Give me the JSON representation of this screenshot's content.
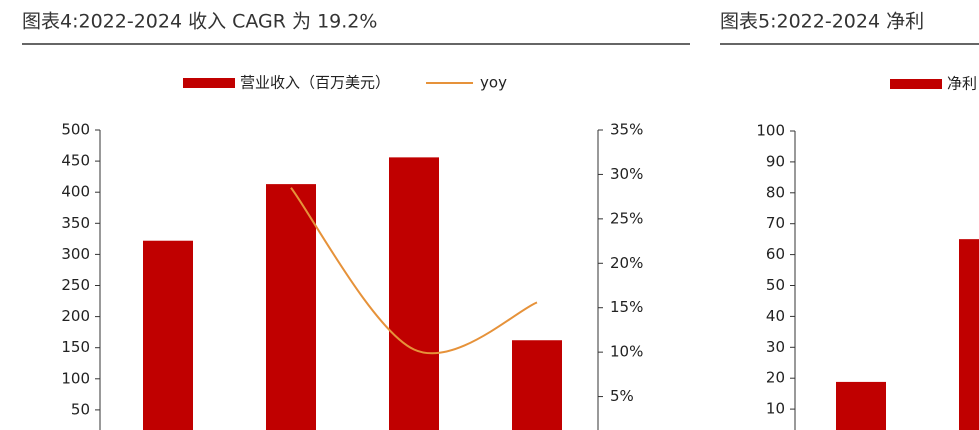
{
  "chart_data": [
    {
      "type": "bar-line",
      "title": "图表4:2022-2024 收入 CAGR 为 19.2%",
      "categories": [
        null,
        null,
        null,
        null
      ],
      "series": [
        {
          "name": "营业收入（百万美元）",
          "color": "#c00000",
          "type": "bar",
          "values": [
            322,
            413,
            456,
            162
          ]
        },
        {
          "name": "yoy",
          "color": "#e6923a",
          "type": "line",
          "axis": "y2",
          "values": [
            null,
            28.5,
            10.3,
            15.6
          ]
        }
      ],
      "ylim": [
        0,
        500
      ],
      "yticks": [
        50,
        100,
        150,
        200,
        250,
        300,
        350,
        400,
        450,
        500
      ],
      "y2lim": [
        0,
        35
      ],
      "y2ticks": [
        {
          "value": 5,
          "label": "5%"
        },
        {
          "value": 10,
          "label": "10%"
        },
        {
          "value": 15,
          "label": "15%"
        },
        {
          "value": 20,
          "label": "20%"
        },
        {
          "value": 25,
          "label": "25%"
        },
        {
          "value": 30,
          "label": "30%"
        },
        {
          "value": 35,
          "label": "35%"
        }
      ]
    },
    {
      "type": "bar",
      "title": "图表5:2022-2024 净利",
      "categories": [
        null,
        null
      ],
      "series": [
        {
          "name": "净利",
          "color": "#c00000",
          "values": [
            18.8,
            65
          ]
        }
      ],
      "ylim": [
        0,
        100
      ],
      "yticks": [
        10,
        20,
        30,
        40,
        50,
        60,
        70,
        80,
        90,
        100
      ]
    }
  ]
}
